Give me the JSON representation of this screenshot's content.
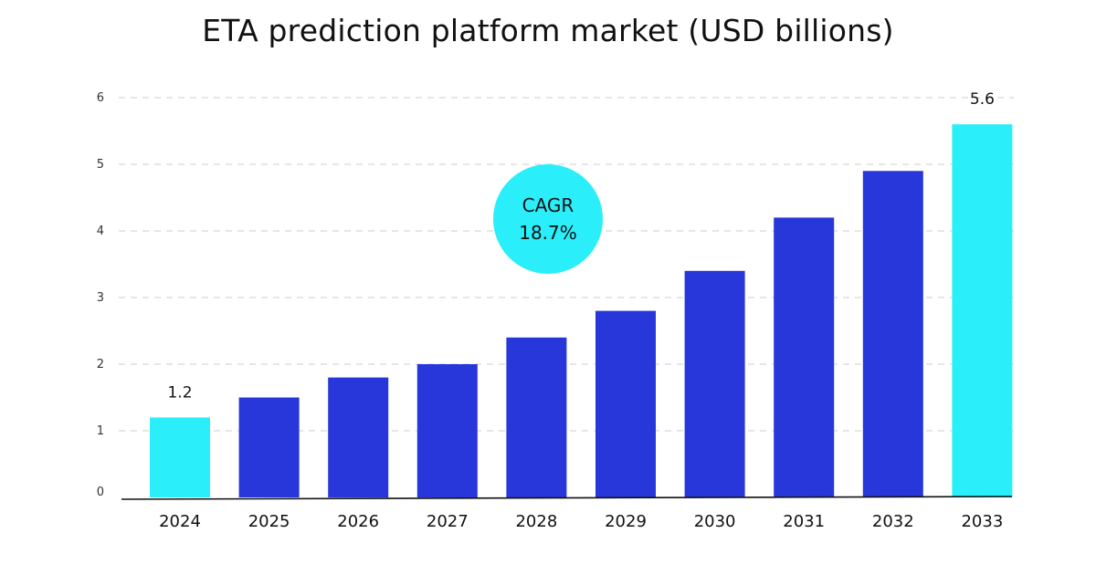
{
  "chart_data": {
    "type": "bar",
    "title": "ETA prediction platform market (USD billions)",
    "xlabel": "",
    "ylabel": "",
    "categories": [
      "2024",
      "2025",
      "2026",
      "2027",
      "2028",
      "2029",
      "2030",
      "2031",
      "2032",
      "2033"
    ],
    "values": [
      1.2,
      1.5,
      1.8,
      2.0,
      2.4,
      2.8,
      3.4,
      4.2,
      4.9,
      5.6
    ],
    "ylim": [
      0,
      6
    ],
    "yticks": [
      "0",
      "1",
      "2",
      "3",
      "4",
      "5",
      "6"
    ],
    "grid": true,
    "data_labels": {
      "2024": "1.2",
      "2033": "5.6"
    },
    "colors": {
      "highlight": "#2AEFFB",
      "bar": "#2837DA",
      "grid": "#CCCCCC",
      "axis": "#111111"
    },
    "badge": {
      "line1": "CAGR",
      "line2": "18.7%",
      "color": "#2AEFFB"
    }
  }
}
